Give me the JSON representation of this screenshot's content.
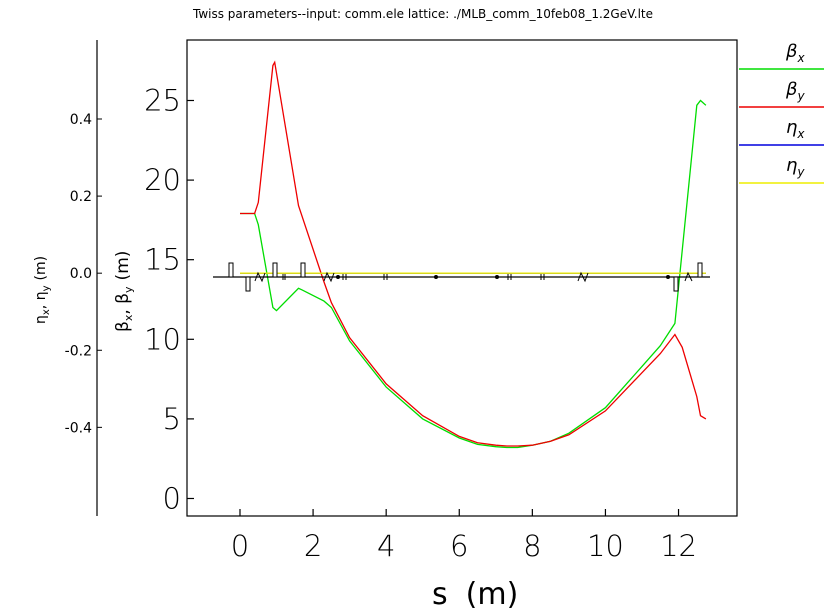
{
  "title": "Twiss parameters--input: comm.ele    lattice: ./MLB_comm_10feb08_1.2GeV.lte",
  "chart_data": {
    "type": "line",
    "xlabel_main": "s",
    "xlabel_unit": "(m)",
    "ylabel_left": {
      "eta": "η",
      "x": "x",
      "sep": ", ",
      "y": "y",
      "unit": "(m)"
    },
    "ylabel_right": {
      "beta": "β",
      "x": "x",
      "sep": ", ",
      "y": "y",
      "unit": "(m)"
    },
    "xlim": [
      -1.45,
      13.6
    ],
    "ylim": [
      -1.1,
      28.8
    ],
    "y2lim": [
      -0.63,
      0.605
    ],
    "xticks": [
      0,
      2,
      4,
      6,
      8,
      10,
      12
    ],
    "xtick_labels": [
      "0",
      "2",
      "4",
      "6",
      "8",
      "10",
      "12"
    ],
    "yticks": [
      0,
      5,
      10,
      15,
      20,
      25
    ],
    "ytick_labels": [
      "0",
      "5",
      "10",
      "15",
      "20",
      "25"
    ],
    "y2ticks": [
      -0.4,
      -0.2,
      0.0,
      0.2,
      0.4
    ],
    "y2tick_labels": [
      "-0.4",
      "-0.2",
      "0.0",
      "0.2",
      "0.4"
    ],
    "legend_position": "right",
    "series": [
      {
        "name": "β",
        "sub": "x",
        "color": "#00dd00",
        "axis": "left",
        "x": [
          0,
          0.4,
          0.5,
          0.9,
          1.0,
          1.6,
          1.7,
          2.3,
          2.5,
          3,
          4,
          5,
          6,
          6.5,
          7,
          7.3,
          7.6,
          8,
          8.5,
          9,
          10,
          11,
          11.5,
          11.9,
          12.5,
          12.6,
          12.75
        ],
        "y": [
          17.9,
          17.9,
          17.2,
          12.0,
          11.8,
          13.2,
          13.1,
          12.4,
          12.0,
          9.9,
          7.0,
          5.0,
          3.8,
          3.4,
          3.25,
          3.2,
          3.2,
          3.35,
          3.6,
          4.1,
          5.7,
          8.3,
          9.6,
          11.0,
          24.7,
          25.0,
          24.7
        ]
      },
      {
        "name": "β",
        "sub": "y",
        "color": "#ee0000",
        "axis": "left",
        "x": [
          0,
          0.4,
          0.5,
          0.9,
          0.95,
          1.6,
          2.3,
          2.5,
          3,
          4,
          5,
          6,
          6.5,
          7,
          7.3,
          7.6,
          8,
          8.5,
          9,
          10,
          11,
          11.5,
          11.9,
          12.1,
          12.5,
          12.6,
          12.75
        ],
        "y": [
          17.9,
          17.9,
          18.6,
          27.2,
          27.4,
          18.4,
          13.6,
          12.3,
          10.1,
          7.2,
          5.2,
          3.9,
          3.5,
          3.35,
          3.3,
          3.3,
          3.35,
          3.6,
          4.0,
          5.5,
          7.9,
          9.1,
          10.3,
          9.5,
          6.4,
          5.2,
          5.0
        ]
      },
      {
        "name": "η",
        "sub": "x",
        "color": "#0000dd",
        "axis": "right",
        "x": [
          0,
          12.75
        ],
        "y": [
          0.0,
          0.0
        ]
      },
      {
        "name": "η",
        "sub": "y",
        "color": "#eeee00",
        "axis": "right",
        "x": [
          0,
          12.75
        ],
        "y": [
          0.0,
          0.0
        ]
      }
    ]
  }
}
